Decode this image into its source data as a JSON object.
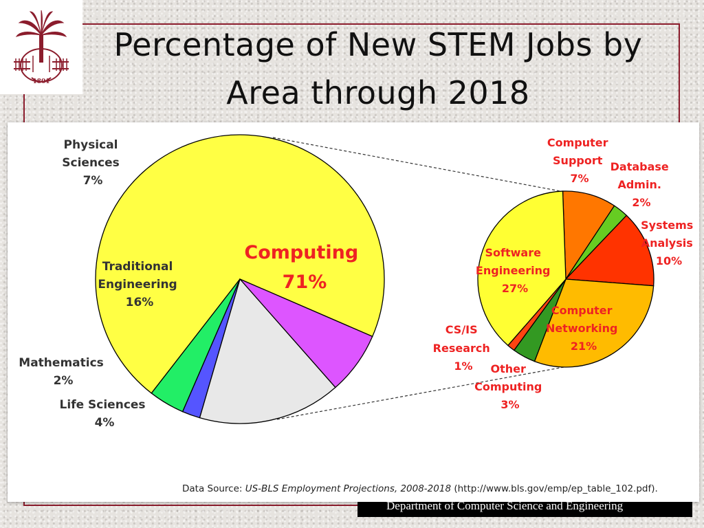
{
  "slide": {
    "title_line1": "Percentage of New STEM Jobs by",
    "title_line2": "Area through 2018",
    "footer": "Department of Computer Science and Engineering",
    "logo_year": "1801"
  },
  "colors": {
    "brand": "#8b1c2c",
    "computing": "#ffff44",
    "physical_sciences": "#dd55ff",
    "traditional_engineering": "#e8e8e8",
    "mathematics": "#5555ff",
    "life_sciences": "#22ee66",
    "computer_support": "#ff7700",
    "database_admin": "#66cc22",
    "systems_analysis": "#ff3300",
    "computer_networking": "#ffbb00",
    "other_computing": "#339922",
    "cs_is_research": "#ff4411",
    "software_engineering": "#ffff33",
    "label_red": "#ee2222",
    "label_dark": "#333333"
  },
  "chart_data": [
    {
      "type": "pie",
      "slices": [
        {
          "label": "Computing",
          "value": 71
        },
        {
          "label": "Physical Sciences",
          "value": 7
        },
        {
          "label": "Traditional Engineering",
          "value": 16
        },
        {
          "label": "Mathematics",
          "value": 2
        },
        {
          "label": "Life Sciences",
          "value": 4
        }
      ]
    },
    {
      "type": "pie",
      "breakdown_of": "Computing",
      "slices": [
        {
          "label": "Computer Support",
          "value": 7
        },
        {
          "label": "Database Admin.",
          "value": 2
        },
        {
          "label": "Systems Analysis",
          "value": 10
        },
        {
          "label": "Computer Networking",
          "value": 21
        },
        {
          "label": "Other Computing",
          "value": 3
        },
        {
          "label": "CS/IS Research",
          "value": 1
        },
        {
          "label": "Software Engineering",
          "value": 27
        }
      ]
    }
  ],
  "main_labels": {
    "computing": [
      "Computing",
      "71%"
    ],
    "physical": [
      "Physical",
      "Sciences",
      "7%"
    ],
    "traditional": [
      "Traditional",
      "Engineering",
      "16%"
    ],
    "mathematics": [
      "Mathematics",
      "2%"
    ],
    "life": [
      "Life Sciences",
      "4%"
    ]
  },
  "sub_labels": {
    "support": [
      "Computer",
      "Support",
      "7%"
    ],
    "database": [
      "Database",
      "Admin.",
      "2%"
    ],
    "systems": [
      "Systems",
      "Analysis",
      "10%"
    ],
    "networking": [
      "Computer",
      "Networking",
      "21%"
    ],
    "other": [
      "Other",
      "Computing",
      "3%"
    ],
    "research": [
      "CS/IS",
      "Research",
      "1%"
    ],
    "software": [
      "Software",
      "Engineering",
      "27%"
    ]
  },
  "source": {
    "prefix": "Data Source: ",
    "citation": "US-BLS Employment Projections, 2008-2018",
    "suffix": " (http://www.bls.gov/emp/ep_table_102.pdf)."
  }
}
